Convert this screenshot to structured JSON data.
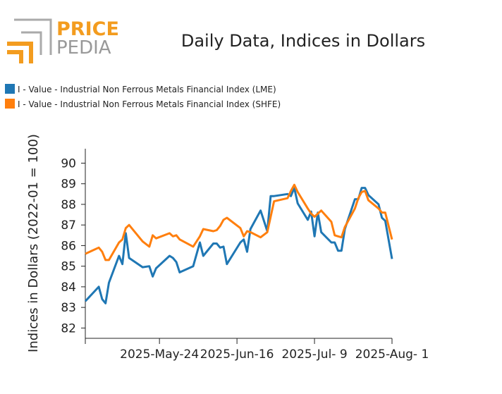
{
  "logo": {
    "top": "PRICE",
    "bottom": "PEDIA"
  },
  "chart_data": {
    "type": "line",
    "title": "Daily Data, Indices in Dollars",
    "y_label": "Indices in Dollars (2022-01 = 100)",
    "x": [
      "2025-05-02",
      "2025-05-06",
      "2025-05-07",
      "2025-05-08",
      "2025-05-09",
      "2025-05-12",
      "2025-05-13",
      "2025-05-14",
      "2025-05-15",
      "2025-05-19",
      "2025-05-21",
      "2025-05-22",
      "2025-05-23",
      "2025-05-27",
      "2025-05-28",
      "2025-05-29",
      "2025-05-30",
      "2025-06-03",
      "2025-06-05",
      "2025-06-06",
      "2025-06-09",
      "2025-06-10",
      "2025-06-11",
      "2025-06-12",
      "2025-06-13",
      "2025-06-17",
      "2025-06-18",
      "2025-06-19",
      "2025-06-20",
      "2025-06-23",
      "2025-06-25",
      "2025-06-26",
      "2025-06-27",
      "2025-07-01",
      "2025-07-02",
      "2025-07-03",
      "2025-07-04",
      "2025-07-07",
      "2025-07-08",
      "2025-07-09",
      "2025-07-10",
      "2025-07-11",
      "2025-07-14",
      "2025-07-15",
      "2025-07-16",
      "2025-07-17",
      "2025-07-18",
      "2025-07-21",
      "2025-07-22",
      "2025-07-23",
      "2025-07-24",
      "2025-07-25",
      "2025-07-28",
      "2025-07-29",
      "2025-07-30",
      "2025-08-01"
    ],
    "series": [
      {
        "name": "I - Value - Industrial Non Ferrous Metals Financial Index (LME)",
        "color": "#1f77b4",
        "values": [
          83.3,
          84.0,
          83.4,
          83.2,
          84.2,
          85.5,
          85.1,
          86.6,
          85.4,
          84.95,
          85.0,
          84.5,
          84.9,
          85.5,
          85.4,
          85.2,
          84.7,
          85.0,
          86.15,
          85.5,
          86.1,
          86.1,
          85.9,
          85.95,
          85.1,
          86.15,
          86.3,
          85.7,
          86.8,
          87.7,
          86.7,
          88.4,
          88.4,
          88.5,
          88.4,
          88.8,
          88.05,
          87.25,
          87.65,
          86.45,
          87.6,
          86.65,
          86.15,
          86.15,
          85.75,
          85.75,
          86.8,
          88.25,
          88.25,
          88.8,
          88.8,
          88.45,
          88.0,
          87.35,
          87.2,
          85.35
        ]
      },
      {
        "name": "I - Value - Industrial Non Ferrous Metals Financial Index (SHFE)",
        "color": "#ff7f0e",
        "values": [
          85.6,
          85.9,
          85.7,
          85.3,
          85.3,
          86.15,
          86.3,
          86.85,
          87.0,
          86.2,
          85.95,
          86.5,
          86.35,
          86.6,
          86.45,
          86.5,
          86.3,
          85.95,
          86.45,
          86.8,
          86.7,
          86.75,
          86.95,
          87.25,
          87.35,
          86.85,
          86.45,
          86.7,
          86.65,
          86.4,
          86.65,
          87.4,
          88.15,
          88.3,
          88.65,
          88.95,
          88.6,
          87.8,
          87.55,
          87.4,
          87.55,
          87.7,
          87.15,
          86.5,
          86.45,
          86.4,
          86.9,
          87.8,
          88.3,
          88.6,
          88.65,
          88.2,
          87.8,
          87.6,
          87.6,
          86.3
        ]
      }
    ],
    "xlim": [
      "2025-05-02",
      "2025-08-01"
    ],
    "xticks": [
      {
        "value": "2025-05-24",
        "label": "2025-May-24"
      },
      {
        "value": "2025-06-16",
        "label": "2025-Jun-16"
      },
      {
        "value": "2025-07-09",
        "label": "2025-Jul- 9"
      },
      {
        "value": "2025-08-01",
        "label": "2025-Aug- 1"
      }
    ],
    "ylim": [
      81.5,
      90.7
    ],
    "yticks": [
      82,
      83,
      84,
      85,
      86,
      87,
      88,
      89,
      90
    ],
    "legend": "top-left"
  }
}
